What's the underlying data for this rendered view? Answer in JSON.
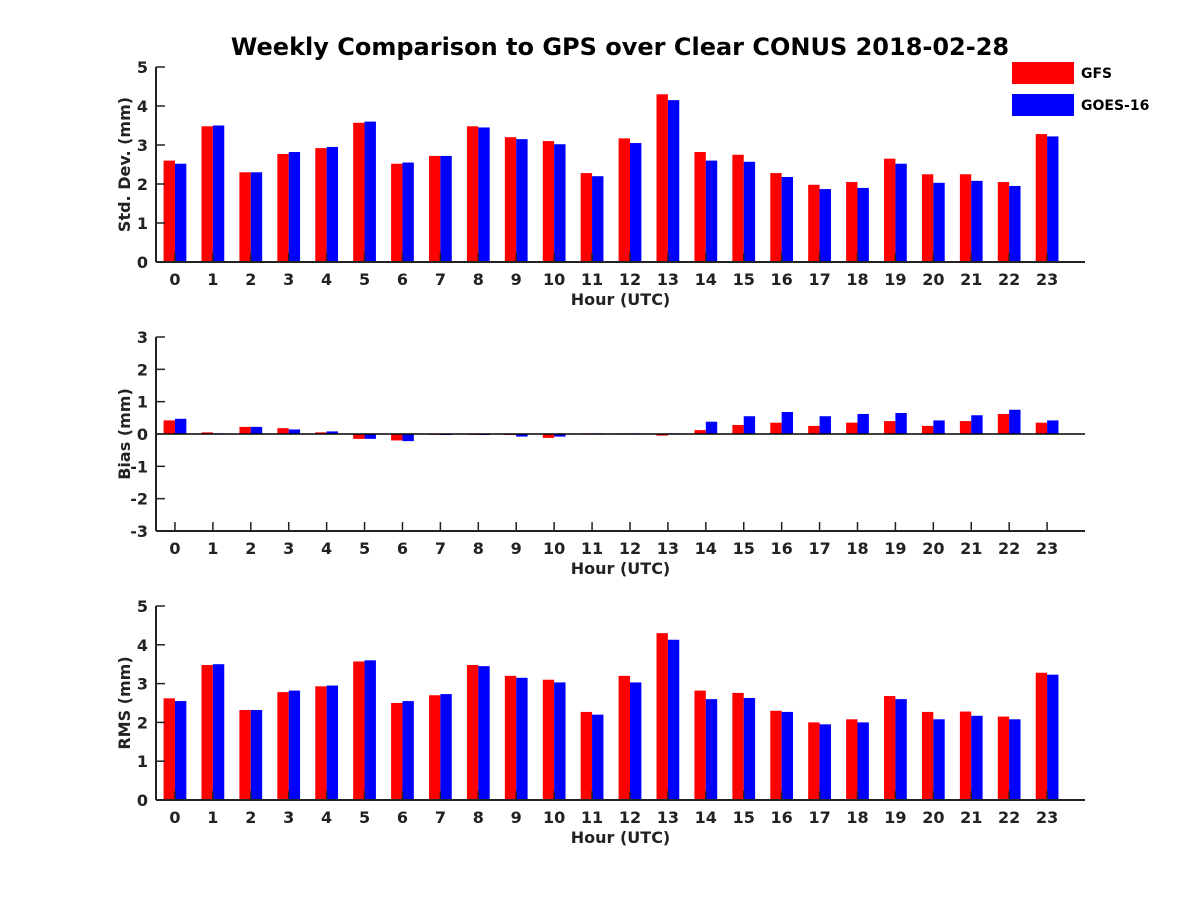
{
  "title": "Weekly Comparison to GPS over Clear CONUS 2018-02-28",
  "legend": {
    "position": "top-right",
    "entries": [
      {
        "name": "GFS",
        "color": "#ff0000"
      },
      {
        "name": "GOES-16",
        "color": "#0000ff"
      }
    ]
  },
  "chart_data": [
    {
      "type": "bar",
      "id": "std",
      "ylabel": "Std. Dev. (mm)",
      "xlabel": "Hour (UTC)",
      "ylim": [
        0,
        5
      ],
      "yticks": [
        0,
        1,
        2,
        3,
        4,
        5
      ],
      "categories": [
        "0",
        "1",
        "2",
        "3",
        "4",
        "5",
        "6",
        "7",
        "8",
        "9",
        "10",
        "11",
        "12",
        "13",
        "14",
        "15",
        "16",
        "17",
        "18",
        "19",
        "20",
        "21",
        "22",
        "23"
      ],
      "series": [
        {
          "name": "GFS",
          "color": "#ff0000",
          "values": [
            2.6,
            3.48,
            2.3,
            2.77,
            2.92,
            3.57,
            2.52,
            2.72,
            3.48,
            3.2,
            3.1,
            2.28,
            3.17,
            4.3,
            2.82,
            2.75,
            2.28,
            1.98,
            2.05,
            2.65,
            2.25,
            2.25,
            2.05,
            3.28
          ]
        },
        {
          "name": "GOES-16",
          "color": "#0000ff",
          "values": [
            2.52,
            3.5,
            2.3,
            2.82,
            2.95,
            3.6,
            2.55,
            2.72,
            3.45,
            3.15,
            3.02,
            2.2,
            3.05,
            4.15,
            2.6,
            2.57,
            2.18,
            1.87,
            1.9,
            2.52,
            2.03,
            2.08,
            1.95,
            3.22
          ]
        }
      ]
    },
    {
      "type": "bar",
      "id": "bias",
      "ylabel": "Bias (mm)",
      "xlabel": "Hour (UTC)",
      "ylim": [
        -3,
        3
      ],
      "yticks": [
        -3,
        -2,
        -1,
        0,
        1,
        2,
        3
      ],
      "categories": [
        "0",
        "1",
        "2",
        "3",
        "4",
        "5",
        "6",
        "7",
        "8",
        "9",
        "10",
        "11",
        "12",
        "13",
        "14",
        "15",
        "16",
        "17",
        "18",
        "19",
        "20",
        "21",
        "22",
        "23"
      ],
      "series": [
        {
          "name": "GFS",
          "color": "#ff0000",
          "values": [
            0.42,
            0.05,
            0.22,
            0.18,
            0.05,
            -0.15,
            -0.2,
            -0.02,
            -0.02,
            -0.03,
            -0.12,
            0.02,
            0.02,
            -0.05,
            0.12,
            0.28,
            0.35,
            0.25,
            0.35,
            0.4,
            0.25,
            0.4,
            0.62,
            0.35
          ]
        },
        {
          "name": "GOES-16",
          "color": "#0000ff",
          "values": [
            0.47,
            0.02,
            0.22,
            0.14,
            0.08,
            -0.15,
            -0.22,
            -0.03,
            -0.03,
            -0.08,
            -0.08,
            0.02,
            0.02,
            0.02,
            0.38,
            0.55,
            0.68,
            0.55,
            0.62,
            0.65,
            0.42,
            0.58,
            0.75,
            0.42
          ]
        }
      ]
    },
    {
      "type": "bar",
      "id": "rms",
      "ylabel": "RMS (mm)",
      "xlabel": "Hour (UTC)",
      "ylim": [
        0,
        5
      ],
      "yticks": [
        0,
        1,
        2,
        3,
        4,
        5
      ],
      "categories": [
        "0",
        "1",
        "2",
        "3",
        "4",
        "5",
        "6",
        "7",
        "8",
        "9",
        "10",
        "11",
        "12",
        "13",
        "14",
        "15",
        "16",
        "17",
        "18",
        "19",
        "20",
        "21",
        "22",
        "23"
      ],
      "series": [
        {
          "name": "GFS",
          "color": "#ff0000",
          "values": [
            2.62,
            3.48,
            2.32,
            2.78,
            2.93,
            3.57,
            2.5,
            2.7,
            3.48,
            3.2,
            3.1,
            2.27,
            3.2,
            4.3,
            2.82,
            2.76,
            2.3,
            2.0,
            2.08,
            2.68,
            2.27,
            2.28,
            2.15,
            3.28
          ]
        },
        {
          "name": "GOES-16",
          "color": "#0000ff",
          "values": [
            2.55,
            3.5,
            2.32,
            2.82,
            2.95,
            3.6,
            2.55,
            2.73,
            3.45,
            3.15,
            3.03,
            2.2,
            3.03,
            4.13,
            2.6,
            2.63,
            2.27,
            1.95,
            2.0,
            2.6,
            2.08,
            2.17,
            2.08,
            3.23
          ]
        }
      ]
    }
  ]
}
